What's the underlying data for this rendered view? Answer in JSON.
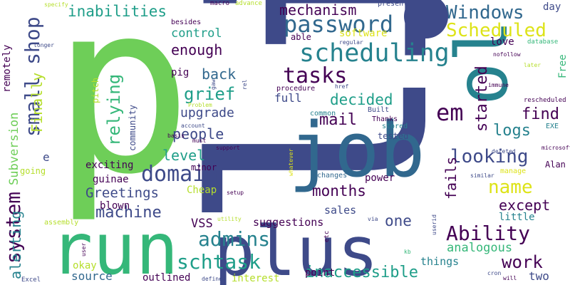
{
  "words": [
    "li",
    "job",
    "run",
    "plus",
    "p",
    "ol",
    "password",
    "scheduling",
    "tasks",
    "mechanism",
    "Windows",
    "Scheduled",
    "inabilities",
    "small shop",
    "em",
    "decided",
    "back",
    "grief",
    "relying",
    "upgrade",
    "domain",
    "machine",
    "admins",
    "schtask",
    "Ability",
    "looking",
    "name",
    "except",
    "work",
    "months",
    "Greetings",
    "people",
    "level",
    "Finally",
    "system",
    "alerting",
    "Subversion",
    "remotely",
    "control",
    "enough",
    "VSS",
    "suggestions",
    "sales",
    "one",
    "inaccessible",
    "interest",
    "point",
    "things",
    "analogous",
    "source",
    "outlined",
    "okay",
    "blown",
    "guinae",
    "exciting",
    "Cheap",
    "started",
    "fails",
    "logs",
    "find",
    "day",
    "love",
    "Free",
    "Alan",
    "little",
    "two",
    "power",
    "changes",
    "tested",
    "Thanks",
    "stored",
    "Built",
    "common",
    "full",
    "procedure",
    "community",
    "pitch",
    "pig",
    "minor",
    "mail",
    "software",
    "able",
    "regular",
    "href",
    "presentations",
    "besides",
    "macro",
    "advance",
    "specify",
    "longer",
    "nofollow",
    "database",
    "later",
    "immune",
    "rescheduled",
    "EXE",
    "microsoft",
    "manage",
    "similar",
    "deleted",
    "whatever",
    "via",
    "kb",
    "cron",
    "will",
    "userid",
    "utility",
    "user",
    "define",
    "Excel",
    "assembly",
    "setup",
    "going",
    "must",
    "basis",
    "account",
    "Problem",
    "support",
    "gaw",
    "rel",
    "etc",
    "e"
  ],
  "colors": {
    "dark_purple": "#440154",
    "indigo": "#3e4a89",
    "slate_blue": "#31688e",
    "teal": "#26828e",
    "sea_green": "#1f9e89",
    "green": "#35b779",
    "light_green": "#6ece58",
    "lime": "#b5de2b",
    "yellow": "#dde318",
    "background": "#ffffff"
  }
}
